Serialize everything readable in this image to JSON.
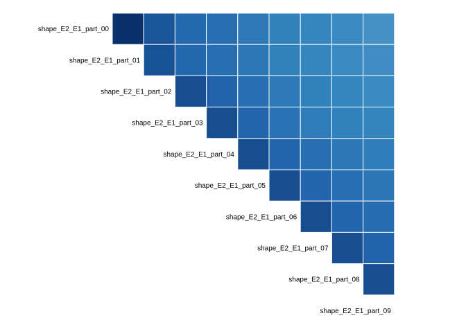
{
  "chart_data": {
    "type": "heatmap",
    "layout": "upper-triangle",
    "row_labels": [
      "shape_E2_E1_part_00",
      "shape_E2_E1_part_01",
      "shape_E2_E1_part_02",
      "shape_E2_E1_part_03",
      "shape_E2_E1_part_04",
      "shape_E2_E1_part_05",
      "shape_E2_E1_part_06",
      "shape_E2_E1_part_07",
      "shape_E2_E1_part_08",
      "shape_E2_E1_part_09"
    ],
    "colors": [
      "#0a3a75",
      "#084593",
      "#2171b5",
      "#6baed6"
    ],
    "color_scale": "blues",
    "grid_lines": "white",
    "cell_values": [
      [
        1.0,
        0.78,
        0.66,
        0.6,
        0.52,
        0.46,
        0.42,
        0.38,
        0.3
      ],
      [
        0.8,
        0.67,
        0.6,
        0.53,
        0.47,
        0.42,
        0.38,
        0.34
      ],
      [
        0.82,
        0.7,
        0.6,
        0.52,
        0.46,
        0.42,
        0.38
      ],
      [
        0.82,
        0.68,
        0.58,
        0.5,
        0.46,
        0.43
      ],
      [
        0.82,
        0.68,
        0.6,
        0.53,
        0.48
      ],
      [
        0.82,
        0.68,
        0.6,
        0.54
      ],
      [
        0.82,
        0.68,
        0.62
      ],
      [
        0.82,
        0.7
      ],
      [
        0.82
      ]
    ]
  }
}
